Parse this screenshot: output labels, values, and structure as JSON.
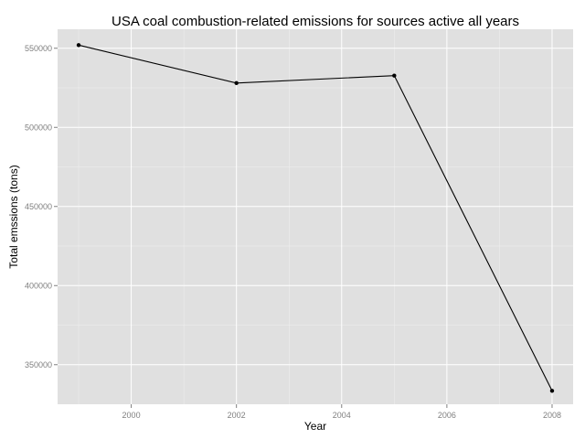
{
  "chart_data": {
    "type": "line",
    "title": "USA coal combustion-related emissions for sources active all years",
    "xlabel": "Year",
    "ylabel": "Total emssions (tons)",
    "x": [
      1999,
      2002,
      2005,
      2008
    ],
    "series": [
      {
        "values": [
          552000,
          528000,
          532700,
          333500
        ]
      }
    ],
    "xlim": [
      1998.6,
      2008.4
    ],
    "ylim": [
      325000,
      562000
    ],
    "x_ticks": [
      2000,
      2002,
      2004,
      2006,
      2008
    ],
    "x_tick_labels": [
      "2000",
      "2002",
      "2004",
      "2006",
      "2008"
    ],
    "y_ticks": [
      350000,
      400000,
      450000,
      500000,
      550000
    ],
    "y_tick_labels": [
      "350000",
      "400000",
      "450000",
      "500000",
      "550000"
    ],
    "grid": true,
    "panel_color": "#E0E0E0",
    "grid_color": "#FFFFFF",
    "line_color": "#000000",
    "point_color": "#000000"
  }
}
